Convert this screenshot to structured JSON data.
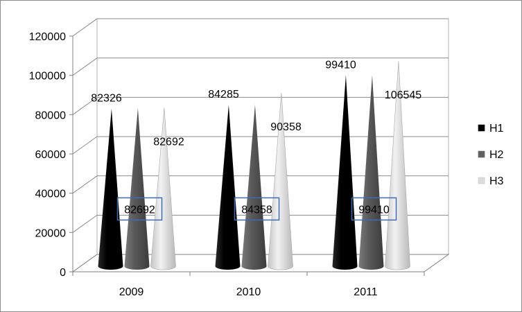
{
  "chart_data": {
    "type": "bar",
    "bar_shape": "cone",
    "three_d": true,
    "categories": [
      "2009",
      "2010",
      "2011"
    ],
    "series": [
      {
        "name": "H1",
        "values": [
          82326,
          84285,
          99410
        ],
        "color": "#000000"
      },
      {
        "name": "H2",
        "values": [
          82692,
          84358,
          99410
        ],
        "color": "#5f5f5f"
      },
      {
        "name": "H3",
        "values": [
          82692,
          90358,
          106545
        ],
        "color": "#dcdcdc"
      }
    ],
    "ylim": [
      0,
      120000
    ],
    "yticks": [
      "0",
      "20000",
      "40000",
      "60000",
      "80000",
      "100000",
      "120000"
    ],
    "grid": true,
    "legend": "right",
    "data_labels": [
      [
        "82326",
        "82692",
        "82692"
      ],
      [
        "84285",
        "84358",
        "90358"
      ],
      [
        "99410",
        "99410",
        "106545"
      ]
    ]
  }
}
